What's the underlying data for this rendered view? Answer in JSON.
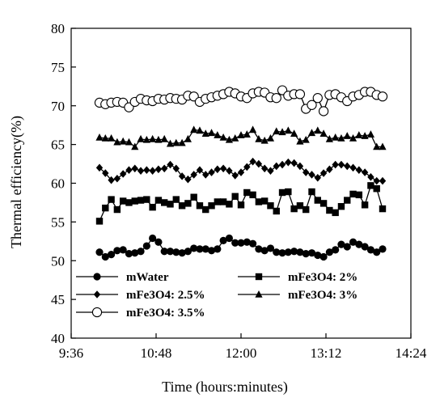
{
  "chart_data": {
    "type": "line",
    "title": "",
    "xlabel": "Time (hours:minutes)",
    "ylabel": "Thermal efficiency(%)",
    "xlim": [
      "9:36",
      "14:24"
    ],
    "ylim": [
      40,
      80
    ],
    "x_ticks": [
      "9:36",
      "10:48",
      "12:00",
      "13:12",
      "14:24"
    ],
    "y_ticks": [
      "40",
      "45",
      "50",
      "55",
      "60",
      "65",
      "70",
      "75",
      "80"
    ],
    "grid": false,
    "legend_position": "bottom-inside",
    "x": [
      "10:00",
      "10:05",
      "10:10",
      "10:15",
      "10:20",
      "10:25",
      "10:30",
      "10:35",
      "10:40",
      "10:45",
      "10:50",
      "10:55",
      "11:00",
      "11:05",
      "11:10",
      "11:15",
      "11:20",
      "11:25",
      "11:30",
      "11:35",
      "11:40",
      "11:45",
      "11:50",
      "11:55",
      "12:00",
      "12:05",
      "12:10",
      "12:15",
      "12:20",
      "12:25",
      "12:30",
      "12:35",
      "12:40",
      "12:45",
      "12:50",
      "12:55",
      "13:00",
      "13:05",
      "13:10",
      "13:15",
      "13:20",
      "13:25",
      "13:30",
      "13:35",
      "13:40",
      "13:45",
      "13:50",
      "13:55",
      "14:00"
    ],
    "series": [
      {
        "name": "mWater",
        "marker": "circle",
        "values": [
          51.1,
          50.5,
          50.8,
          51.3,
          51.4,
          50.9,
          51.0,
          51.2,
          51.9,
          52.9,
          52.4,
          51.2,
          51.2,
          51.1,
          51.0,
          51.2,
          51.6,
          51.5,
          51.5,
          51.3,
          51.5,
          52.6,
          52.9,
          52.3,
          52.3,
          52.4,
          52.2,
          51.5,
          51.3,
          51.6,
          51.1,
          51.0,
          51.1,
          51.2,
          51.1,
          50.9,
          51.0,
          50.7,
          50.5,
          51.1,
          51.4,
          52.1,
          51.8,
          52.4,
          52.1,
          51.8,
          51.4,
          51.1,
          51.5
        ]
      },
      {
        "name": "mFe3O4: 2%",
        "marker": "square",
        "values": [
          55.1,
          56.8,
          57.9,
          56.6,
          57.7,
          57.5,
          57.7,
          57.8,
          57.9,
          56.9,
          57.8,
          57.5,
          57.3,
          57.9,
          57.1,
          57.4,
          58.2,
          57.1,
          56.6,
          57.1,
          57.6,
          57.6,
          57.3,
          58.3,
          57.2,
          58.8,
          58.5,
          57.6,
          57.7,
          57.1,
          56.4,
          58.8,
          58.9,
          56.7,
          57.1,
          56.6,
          58.9,
          57.8,
          57.4,
          56.5,
          56.2,
          57.0,
          57.8,
          58.6,
          58.5,
          57.2,
          59.7,
          59.3,
          56.7
        ]
      },
      {
        "name": "mFe3O4: 2.5%",
        "marker": "diamond",
        "values": [
          62.0,
          61.3,
          60.4,
          60.6,
          61.2,
          61.7,
          61.9,
          61.6,
          61.7,
          61.6,
          61.8,
          61.9,
          62.4,
          61.9,
          60.9,
          60.5,
          61.1,
          61.7,
          61.1,
          61.4,
          61.8,
          61.9,
          61.6,
          61.0,
          61.4,
          62.1,
          62.8,
          62.5,
          61.9,
          61.6,
          62.2,
          62.4,
          62.7,
          62.6,
          62.2,
          61.4,
          61.1,
          60.7,
          61.3,
          61.8,
          62.4,
          62.4,
          62.2,
          62.0,
          61.7,
          61.4,
          60.8,
          60.3,
          60.3
        ]
      },
      {
        "name": "mFe3O4: 3%",
        "marker": "triangle",
        "values": [
          65.9,
          65.8,
          65.8,
          65.3,
          65.4,
          65.3,
          64.7,
          65.7,
          65.6,
          65.7,
          65.6,
          65.7,
          65.1,
          65.2,
          65.2,
          65.7,
          66.9,
          66.8,
          66.4,
          66.5,
          66.2,
          65.9,
          65.6,
          65.8,
          66.2,
          66.3,
          66.9,
          65.7,
          65.5,
          65.8,
          66.7,
          66.6,
          66.8,
          66.4,
          65.4,
          65.6,
          66.5,
          66.8,
          66.4,
          65.7,
          65.9,
          65.8,
          66.1,
          65.8,
          66.2,
          66.1,
          66.3,
          64.7,
          64.7
        ]
      },
      {
        "name": "mFe3O4: 3.5%",
        "marker": "circle-open",
        "values": [
          70.4,
          70.2,
          70.4,
          70.5,
          70.4,
          69.8,
          70.5,
          70.9,
          70.7,
          70.6,
          70.9,
          70.8,
          71.0,
          70.9,
          70.8,
          71.3,
          71.2,
          70.5,
          70.9,
          71.1,
          71.3,
          71.5,
          71.8,
          71.6,
          71.2,
          71.0,
          71.6,
          71.8,
          71.7,
          71.1,
          71.0,
          72.0,
          71.3,
          71.5,
          71.5,
          69.6,
          70.1,
          71.0,
          69.3,
          71.4,
          71.5,
          71.1,
          70.6,
          71.2,
          71.4,
          71.8,
          71.8,
          71.4,
          71.2
        ]
      }
    ]
  }
}
